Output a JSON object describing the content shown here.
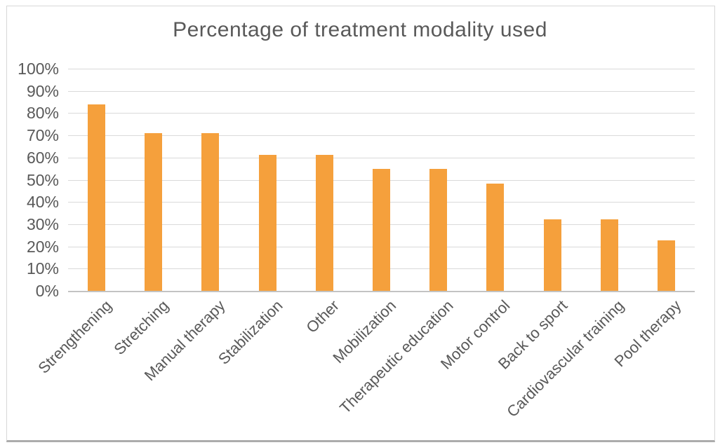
{
  "chart_data": {
    "type": "bar",
    "title": "Percentage of treatment modality used",
    "categories": [
      "Strengthening",
      "Stretching",
      "Manual therapy",
      "Stabilization",
      "Other",
      "Mobilization",
      "Therapeutic education",
      "Motor control",
      "Back to sport",
      "Cardiovascular training",
      "Pool therapy"
    ],
    "values": [
      83.9,
      71.0,
      71.0,
      61.3,
      61.3,
      54.8,
      54.8,
      48.4,
      32.3,
      32.3,
      22.6
    ],
    "y_tick_labels": [
      "100%",
      "90%",
      "80%",
      "70%",
      "60%",
      "50%",
      "40%",
      "30%",
      "20%",
      "10%",
      "0%"
    ],
    "ylim": [
      0,
      100
    ],
    "xlabel": "",
    "ylabel": "",
    "grid": true,
    "legend": "none",
    "colors": {
      "bar": "#F5A03C",
      "title_text": "#595959",
      "axis_text": "#595959",
      "gridline": "#DADADA",
      "axis_line": "#C3C3C3",
      "frame_border": "#D7D7D7",
      "frame_bottom": "#ACACAC",
      "background": "#FFFFFF"
    }
  }
}
